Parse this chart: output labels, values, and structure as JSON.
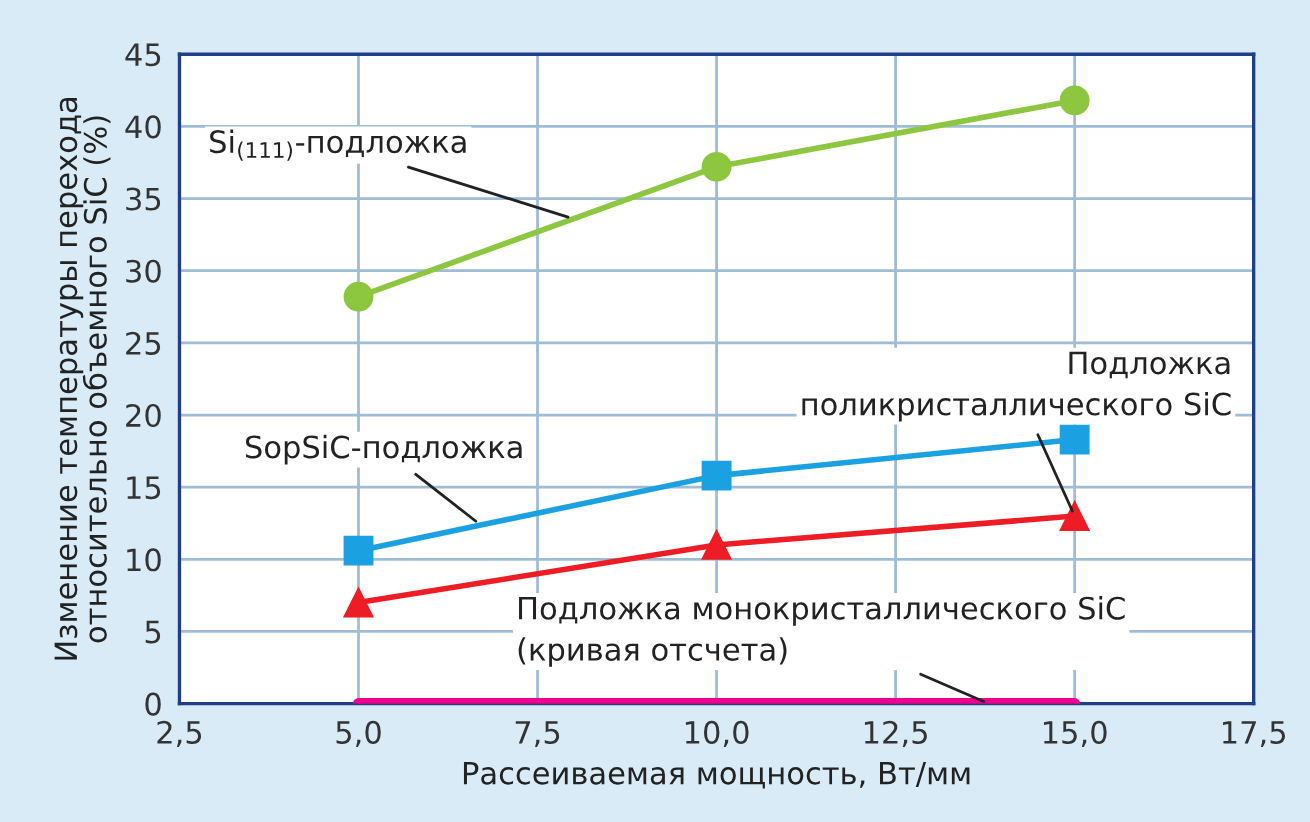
{
  "chart_data": {
    "type": "line",
    "xlabel": "Рассеиваемая мощность, Вт/мм",
    "ylabel": "Изменение температуры перехода\nотносительно объемного SiC (%)",
    "series": [
      {
        "color": "#8dc63f",
        "x": [
          5,
          10,
          15
        ],
        "values": [
          28.2,
          37.2,
          41.8
        ],
        "marker": "circle"
      },
      {
        "color": "#1ba1e2",
        "x": [
          5,
          10,
          15
        ],
        "values": [
          10.6,
          15.8,
          18.3
        ],
        "marker": "square"
      },
      {
        "color": "#ee1c25",
        "x": [
          5,
          10,
          15
        ],
        "values": [
          7,
          11,
          13
        ],
        "marker": "triangle"
      },
      {
        "color": "#ec008c",
        "x": [
          5,
          15
        ],
        "values": [
          0,
          0
        ],
        "marker": "none"
      }
    ],
    "xlim": [
      2.5,
      17.5
    ],
    "xticks": [
      {
        "value": 2.5,
        "label": "2,5"
      },
      {
        "value": 5,
        "label": "5,0"
      },
      {
        "value": 7.5,
        "label": "7,5"
      },
      {
        "value": 10,
        "label": "10,0"
      },
      {
        "value": 12.5,
        "label": "12,5"
      },
      {
        "value": 15,
        "label": "15,0"
      },
      {
        "value": 17.5,
        "label": "17,5"
      }
    ],
    "ylim": [
      0,
      45
    ],
    "yticks": [
      0,
      5,
      10,
      15,
      20,
      25,
      30,
      35,
      40,
      45
    ],
    "grid": true,
    "legend": false,
    "annotations": [
      {
        "text": "Si$_{(111)}$-подложка",
        "x": 8.0,
        "y": 33.6
      },
      {
        "text": "SopSiC-подложка",
        "x": 6.7,
        "y": 12.4
      },
      {
        "text": "Подложка\nполикристаллического SiC",
        "x": 15,
        "y": 13
      },
      {
        "text": "Подложка монокристаллического SiC\n(кривая отсчета)",
        "x": 13.8,
        "y": 0
      }
    ]
  }
}
